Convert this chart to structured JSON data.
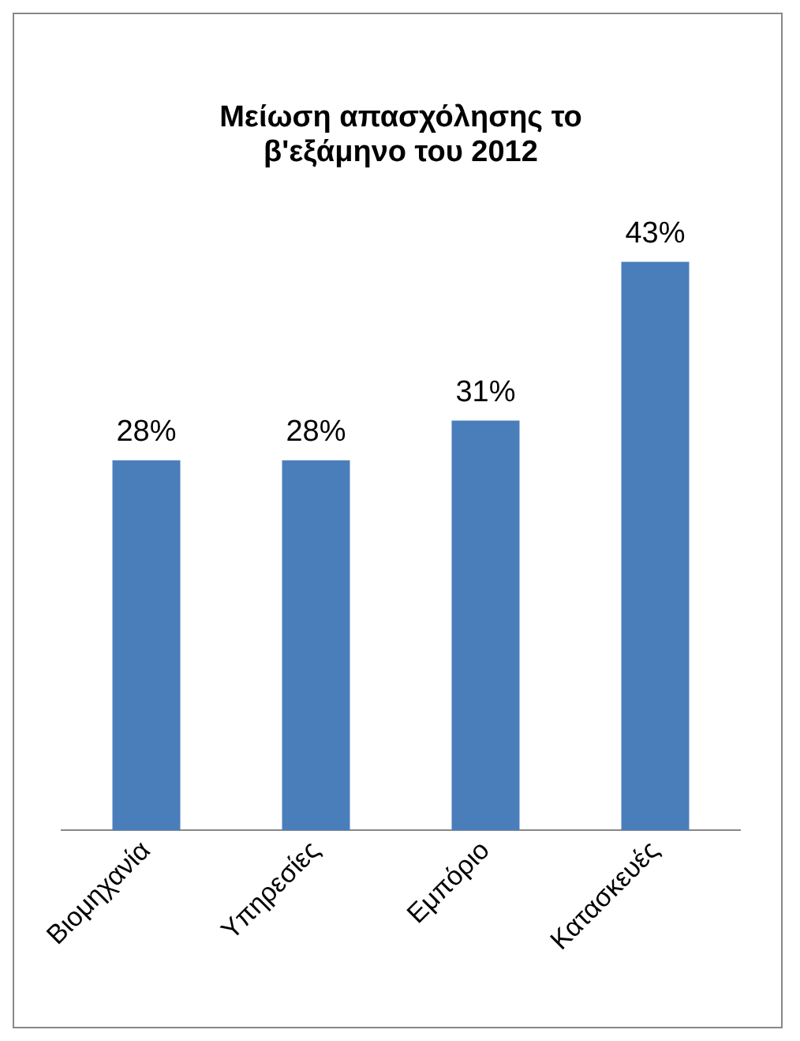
{
  "chart_data": {
    "type": "bar",
    "title": "Μείωση απασχόλησης το β'εξάμηνο του 2012",
    "categories": [
      "Βιομηχανία",
      "Υπηρεσίες",
      "Εμπόριο",
      "Κατασκευές"
    ],
    "values": [
      28,
      28,
      31,
      43
    ],
    "value_labels": [
      "28%",
      "28%",
      "31%",
      "43%"
    ],
    "color": "#4a7ebb"
  }
}
